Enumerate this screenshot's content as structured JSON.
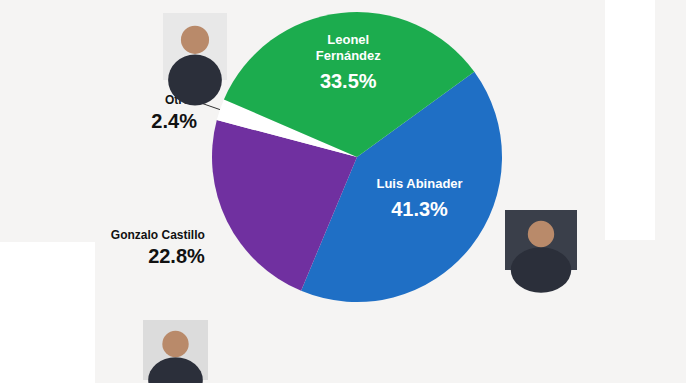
{
  "chart_data": {
    "type": "pie",
    "categories": [
      "Luis Abinader",
      "Gonzalo Castillo",
      "Otros",
      "Leonel Fernández"
    ],
    "values": [
      41.3,
      22.8,
      2.4,
      33.5
    ],
    "value_labels": [
      "41.3%",
      "22.8%",
      "2.4%",
      "33.5%"
    ],
    "colors": [
      "#1f6fc5",
      "#7030a0",
      "#ffffff",
      "#1cac4e"
    ],
    "data_labels": true
  }
}
